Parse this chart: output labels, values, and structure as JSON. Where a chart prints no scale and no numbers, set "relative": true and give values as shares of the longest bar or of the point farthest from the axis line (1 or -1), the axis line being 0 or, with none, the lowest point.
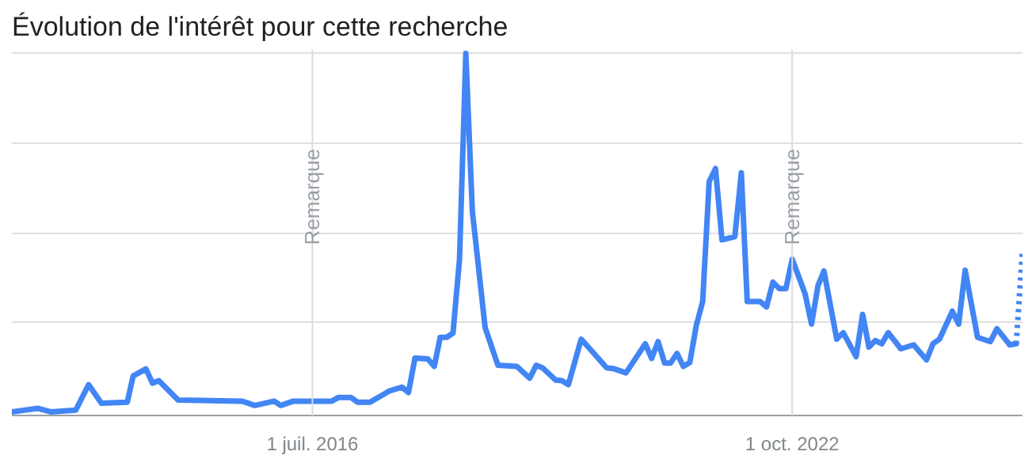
{
  "chart_data": {
    "type": "line",
    "title": "Évolution de l'intérêt pour cette recherche",
    "relative": true,
    "grid": "y",
    "line_style": "solid",
    "xlim": [
      "2012-08",
      "2025-10"
    ],
    "xticks": [
      {
        "value": "2016-07-01",
        "label": "1 juil. 2016"
      },
      {
        "value": "2022-10-01",
        "label": "1 oct. 2022"
      }
    ],
    "ref_lines": [
      {
        "axis": "x",
        "value": "2016-07-01",
        "label": "Remarque",
        "color": "#dadce0"
      },
      {
        "axis": "x",
        "value": "2022-10-01",
        "label": "Remarque",
        "color": "#dadce0"
      }
    ],
    "series": [
      {
        "color": "#4285f4",
        "x": [
          "2012-08",
          "2012-12",
          "2013-02",
          "2013-06",
          "2013-08",
          "2013-10",
          "2014-02",
          "2014-03",
          "2014-05",
          "2014-06",
          "2014-07",
          "2014-10",
          "2015-08",
          "2015-10",
          "2016-01",
          "2016-02",
          "2016-04",
          "2016-10",
          "2016-11",
          "2017-01",
          "2017-02",
          "2017-04",
          "2017-07",
          "2017-09",
          "2017-10",
          "2017-11",
          "2018-01",
          "2018-02",
          "2018-03",
          "2018-04",
          "2018-05",
          "2018-06",
          "2018-07",
          "2018-08",
          "2018-10",
          "2018-12",
          "2019-03",
          "2019-05",
          "2019-06",
          "2019-07",
          "2019-09",
          "2019-10",
          "2019-11",
          "2020-01",
          "2020-05",
          "2020-06",
          "2020-08",
          "2020-09",
          "2020-11",
          "2020-12",
          "2021-01",
          "2021-02",
          "2021-03",
          "2021-04",
          "2021-05",
          "2021-06",
          "2021-07",
          "2021-08",
          "2021-09",
          "2021-10",
          "2021-11",
          "2022-01",
          "2022-02",
          "2022-03",
          "2022-05",
          "2022-06",
          "2022-07",
          "2022-08",
          "2022-09",
          "2022-10",
          "2022-12",
          "2023-01",
          "2023-02",
          "2023-03",
          "2023-05",
          "2023-06",
          "2023-08",
          "2023-09",
          "2023-10",
          "2023-11",
          "2023-12",
          "2024-01",
          "2024-03",
          "2024-05",
          "2024-07",
          "2024-08",
          "2024-09",
          "2024-11",
          "2024-12",
          "2025-01",
          "2025-03",
          "2025-05",
          "2025-06",
          "2025-08",
          "2025-09"
        ],
        "values": [
          0,
          0.01,
          0,
          0.005,
          0.076,
          0.024,
          0.027,
          0.1,
          0.12,
          0.08,
          0.087,
          0.033,
          0.03,
          0.018,
          0.03,
          0.018,
          0.03,
          0.03,
          0.04,
          0.04,
          0.027,
          0.027,
          0.058,
          0.069,
          0.054,
          0.15,
          0.148,
          0.127,
          0.208,
          0.208,
          0.22,
          0.426,
          1,
          0.56,
          0.235,
          0.13,
          0.127,
          0.094,
          0.13,
          0.123,
          0.089,
          0.087,
          0.076,
          0.203,
          0.123,
          0.121,
          0.109,
          0.136,
          0.19,
          0.149,
          0.196,
          0.136,
          0.136,
          0.163,
          0.127,
          0.138,
          0.239,
          0.308,
          0.643,
          0.679,
          0.48,
          0.489,
          0.667,
          0.308,
          0.308,
          0.293,
          0.362,
          0.344,
          0.344,
          0.426,
          0.33,
          0.245,
          0.353,
          0.393,
          0.203,
          0.221,
          0.154,
          0.272,
          0.181,
          0.199,
          0.19,
          0.221,
          0.176,
          0.187,
          0.145,
          0.19,
          0.203,
          0.281,
          0.245,
          0.395,
          0.208,
          0.196,
          0.232,
          0.187,
          0.19
        ]
      },
      {
        "color": "#4285f4",
        "line_style": "dotted",
        "x": [
          "2025-09",
          "2025-10"
        ],
        "values": [
          0.19,
          0.453
        ]
      }
    ]
  }
}
